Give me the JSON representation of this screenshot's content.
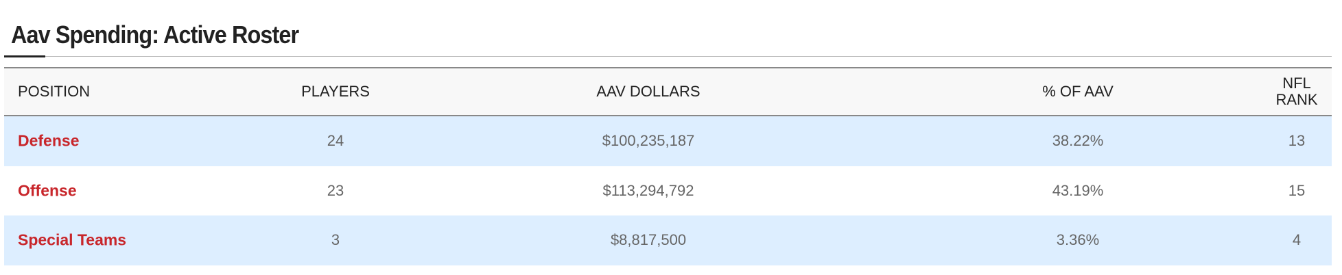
{
  "header": {
    "title": "Aav Spending: Active Roster"
  },
  "table": {
    "columns": [
      "POSITION",
      "PLAYERS",
      "AAV DOLLARS",
      "% OF AAV",
      "NFL RANK"
    ],
    "rows": [
      [
        "Defense",
        "24",
        "$100,235,187",
        "38.22%",
        "13"
      ],
      [
        "Offense",
        "23",
        "$113,294,792",
        "43.19%",
        "15"
      ],
      [
        "Special Teams",
        "3",
        "$8,817,500",
        "3.36%",
        "4"
      ]
    ]
  }
}
